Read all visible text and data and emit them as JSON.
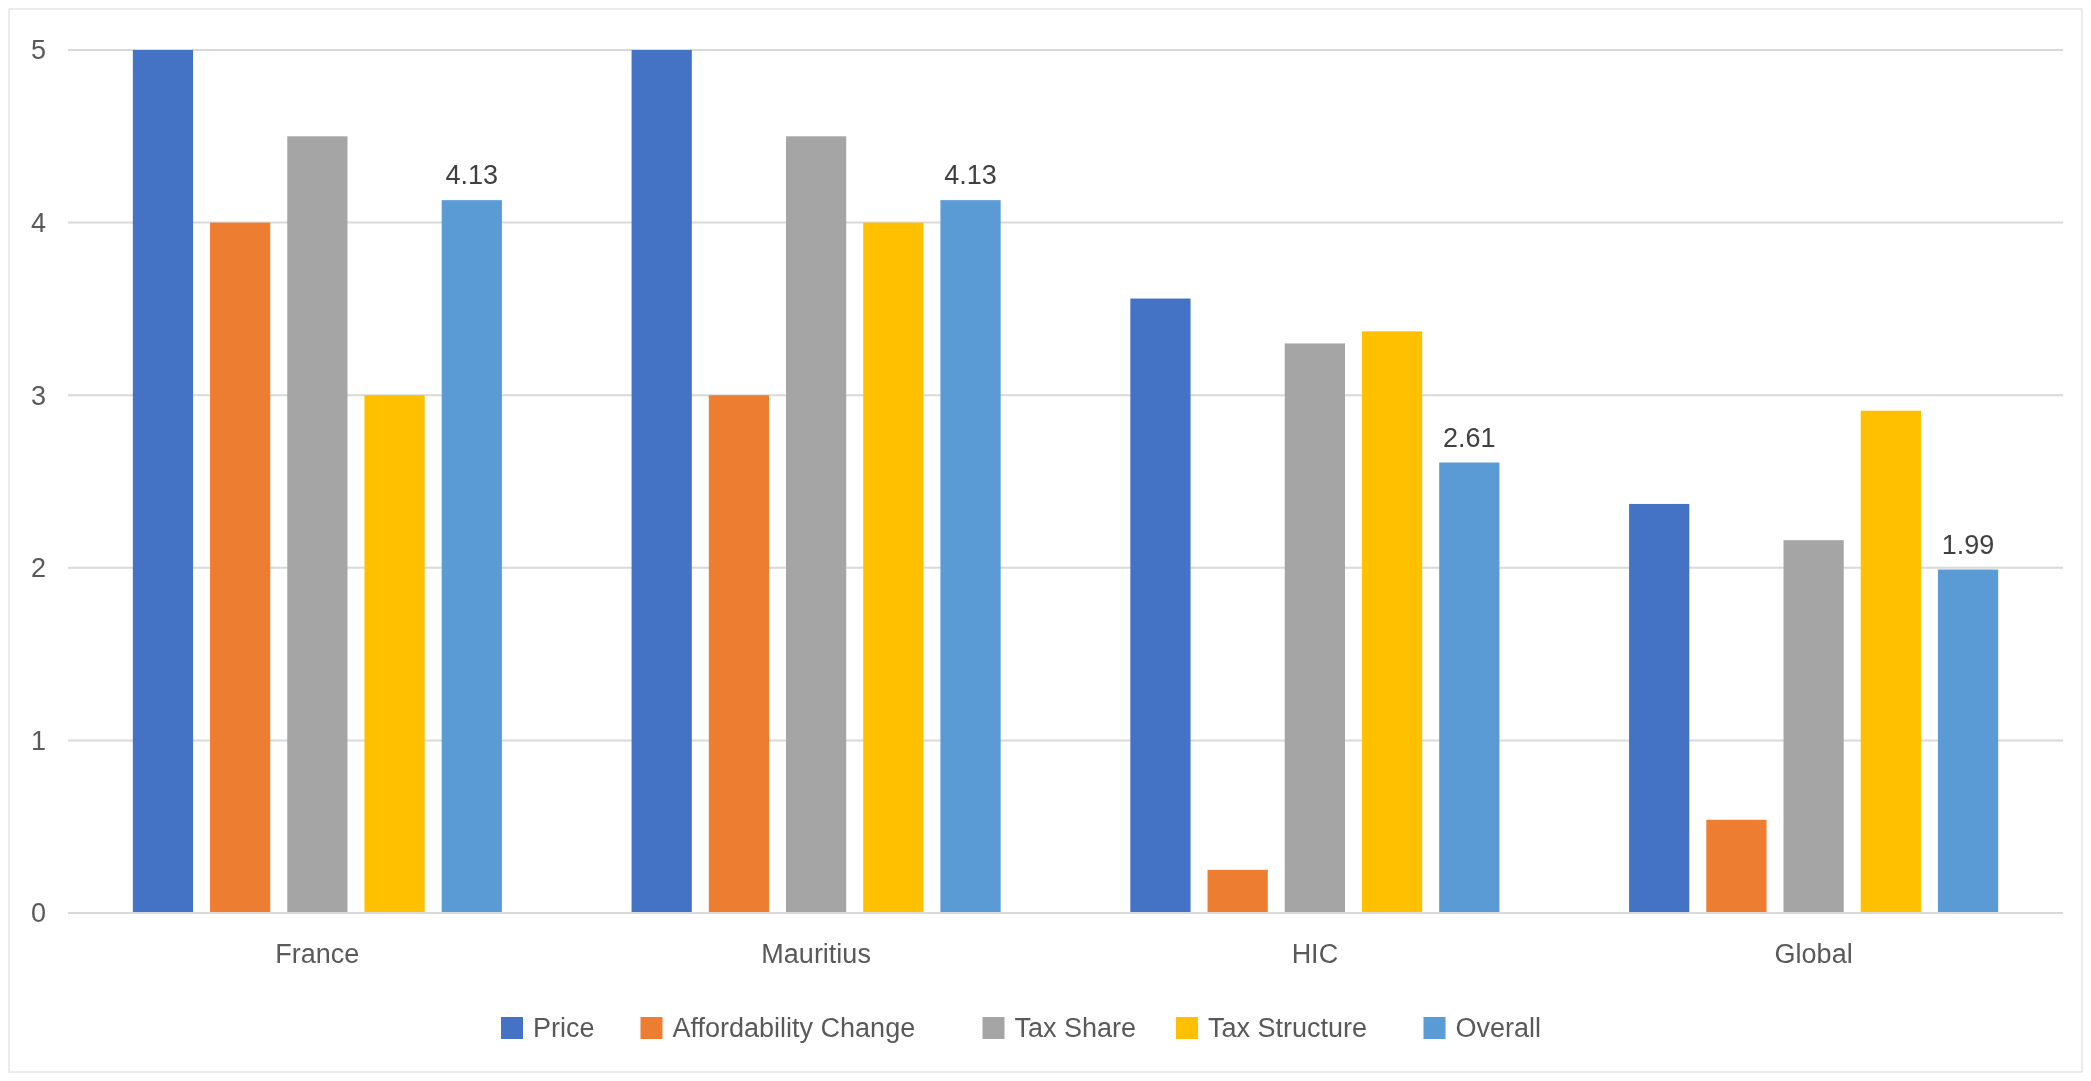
{
  "chart_data": {
    "type": "bar",
    "categories": [
      "France",
      "Mauritius",
      "HIC",
      "Global"
    ],
    "series": [
      {
        "name": "Price",
        "color": "#4472c4",
        "values": [
          5,
          5,
          3.56,
          2.37
        ]
      },
      {
        "name": "Affordability Change",
        "color": "#ed7d31",
        "values": [
          4,
          3,
          0.25,
          0.54
        ]
      },
      {
        "name": "Tax Share",
        "color": "#a5a5a5",
        "values": [
          4.5,
          4.5,
          3.3,
          2.16
        ]
      },
      {
        "name": "Tax Structure",
        "color": "#ffc000",
        "values": [
          3,
          4,
          3.37,
          2.91
        ]
      },
      {
        "name": "Overall",
        "color": "#5b9bd5",
        "values": [
          4.13,
          4.13,
          2.61,
          1.99
        ],
        "value_labels": [
          "4.13",
          "4.13",
          "2.61",
          "1.99"
        ]
      }
    ],
    "ylim": [
      0,
      5
    ],
    "yticks": [
      0,
      1,
      2,
      3,
      4,
      5
    ],
    "grid": "y",
    "legend": "bottom"
  }
}
